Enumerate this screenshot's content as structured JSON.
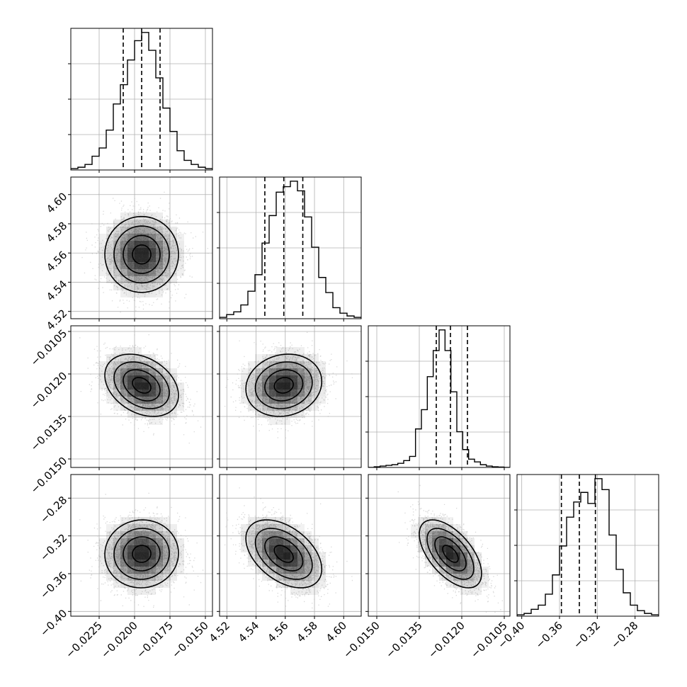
{
  "chart_data": {
    "type": "corner",
    "parameters": [
      {
        "id": "p0",
        "range": [
          -0.0245,
          -0.0145
        ],
        "ticks": [
          -0.0225,
          -0.02,
          -0.0175,
          -0.015
        ],
        "tick_labels": [
          "−0.0225",
          "−0.0200",
          "−0.0175",
          "−0.0150"
        ],
        "mean": -0.0195,
        "quantiles": [
          -0.0208,
          -0.0195,
          -0.0182
        ],
        "hist": [
          0.01,
          0.02,
          0.04,
          0.1,
          0.16,
          0.29,
          0.48,
          0.62,
          0.8,
          0.94,
          1.0,
          0.87,
          0.67,
          0.45,
          0.28,
          0.14,
          0.07,
          0.04,
          0.02,
          0.01
        ]
      },
      {
        "id": "p1",
        "range": [
          4.515,
          4.612
        ],
        "ticks": [
          4.52,
          4.54,
          4.56,
          4.58,
          4.6
        ],
        "tick_labels": [
          "4.52",
          "4.54",
          "4.56",
          "4.58",
          "4.60"
        ],
        "mean": 4.559,
        "quantiles": [
          4.546,
          4.559,
          4.572
        ],
        "hist": [
          0.01,
          0.03,
          0.05,
          0.1,
          0.2,
          0.32,
          0.55,
          0.75,
          0.92,
          0.96,
          1.0,
          0.93,
          0.74,
          0.52,
          0.3,
          0.19,
          0.08,
          0.04,
          0.02,
          0.01
        ]
      },
      {
        "id": "p2",
        "range": [
          -0.0153,
          -0.0103
        ],
        "ticks": [
          -0.015,
          -0.0135,
          -0.012,
          -0.0105
        ],
        "tick_labels": [
          "−0.0150",
          "−0.0135",
          "−0.0120",
          "−0.0105"
        ],
        "mean": -0.0124,
        "quantiles": [
          -0.0129,
          -0.0124,
          -0.0118
        ],
        "hist": [
          0.0,
          0.005,
          0.01,
          0.015,
          0.02,
          0.03,
          0.05,
          0.08,
          0.28,
          0.42,
          0.66,
          0.85,
          1.0,
          0.85,
          0.55,
          0.26,
          0.13,
          0.06,
          0.04,
          0.02,
          0.01,
          0.005,
          0.003,
          0.0
        ]
      },
      {
        "id": "p3",
        "range": [
          -0.405,
          -0.255
        ],
        "ticks": [
          -0.4,
          -0.36,
          -0.32,
          -0.28
        ],
        "tick_labels": [
          "−0.40",
          "−0.36",
          "−0.32",
          "−0.28"
        ],
        "mean": -0.339,
        "quantiles": [
          -0.358,
          -0.339,
          -0.322
        ],
        "hist": [
          0.01,
          0.02,
          0.05,
          0.08,
          0.16,
          0.3,
          0.51,
          0.72,
          0.83,
          0.9,
          0.82,
          1.0,
          0.92,
          0.59,
          0.34,
          0.17,
          0.08,
          0.04,
          0.02,
          0.01
        ]
      }
    ],
    "correlations": [
      [
        1.0,
        0.0,
        -0.32,
        0.02
      ],
      [
        0.0,
        1.0,
        0.12,
        -0.45
      ],
      [
        -0.32,
        0.12,
        1.0,
        -0.58
      ],
      [
        0.02,
        -0.45,
        -0.58,
        1.0
      ]
    ],
    "contour_levels": [
      "0.5σ",
      "1σ",
      "1.5σ",
      "2σ"
    ],
    "quantile_levels": [
      0.16,
      0.5,
      0.84
    ],
    "grid": true,
    "colors": {
      "line": "#000000",
      "grid": "#b0b0b0",
      "points": "#b8b8b8",
      "density": "#000000"
    }
  }
}
